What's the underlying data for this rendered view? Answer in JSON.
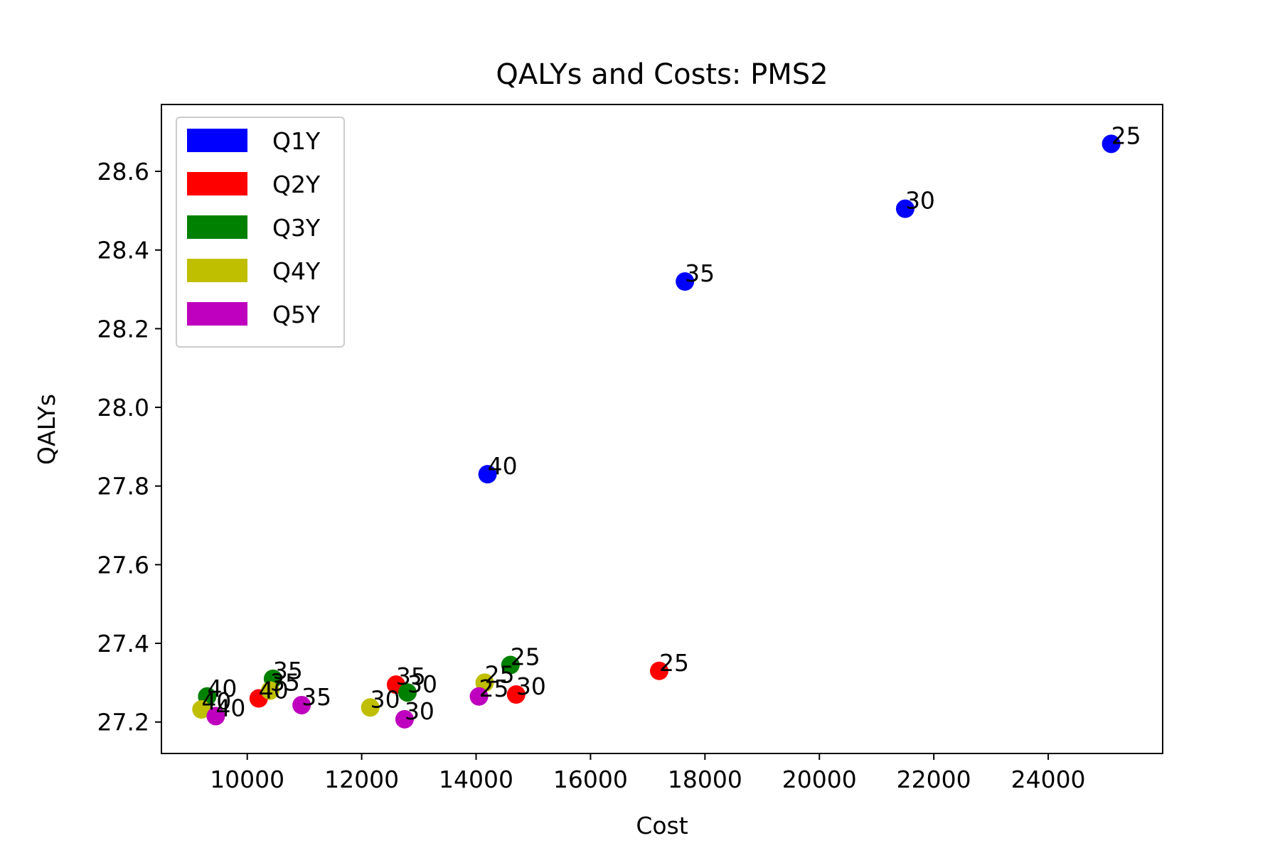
{
  "chart_data": {
    "type": "scatter",
    "title": "QALYs and Costs: PMS2",
    "xlabel": "Cost",
    "ylabel": "QALYs",
    "xlim": [
      8500,
      26000
    ],
    "ylim": [
      27.12,
      28.77
    ],
    "xticks": [
      10000,
      12000,
      14000,
      16000,
      18000,
      20000,
      22000,
      24000
    ],
    "yticks": [
      27.2,
      27.4,
      27.6,
      27.8,
      28.0,
      28.2,
      28.4,
      28.6
    ],
    "xtick_labels": [
      "10000",
      "12000",
      "14000",
      "16000",
      "18000",
      "20000",
      "22000",
      "24000"
    ],
    "ytick_labels": [
      "27.2",
      "27.4",
      "27.6",
      "27.8",
      "28.0",
      "28.2",
      "28.4",
      "28.6"
    ],
    "grid": false,
    "legend_position": "top-left",
    "series": [
      {
        "name": "Q1Y",
        "color": "#0000ff",
        "points": [
          {
            "x": 25100,
            "y": 28.67,
            "label": "25"
          },
          {
            "x": 21500,
            "y": 28.505,
            "label": "30"
          },
          {
            "x": 17650,
            "y": 28.32,
            "label": "35"
          },
          {
            "x": 14200,
            "y": 27.83,
            "label": "40"
          }
        ]
      },
      {
        "name": "Q2Y",
        "color": "#ff0000",
        "points": [
          {
            "x": 17200,
            "y": 27.33,
            "label": "25"
          },
          {
            "x": 14700,
            "y": 27.27,
            "label": "30"
          },
          {
            "x": 12600,
            "y": 27.295,
            "label": "35"
          },
          {
            "x": 10200,
            "y": 27.26,
            "label": "40"
          }
        ]
      },
      {
        "name": "Q3Y",
        "color": "#008000",
        "points": [
          {
            "x": 14600,
            "y": 27.345,
            "label": "25"
          },
          {
            "x": 12800,
            "y": 27.275,
            "label": "30"
          },
          {
            "x": 10450,
            "y": 27.31,
            "label": "35"
          },
          {
            "x": 9300,
            "y": 27.265,
            "label": "40"
          }
        ]
      },
      {
        "name": "Q4Y",
        "color": "#bfbf00",
        "points": [
          {
            "x": 14150,
            "y": 27.3,
            "label": "25"
          },
          {
            "x": 12150,
            "y": 27.237,
            "label": "30"
          },
          {
            "x": 10400,
            "y": 27.28,
            "label": "35"
          },
          {
            "x": 9200,
            "y": 27.232,
            "label": "40"
          }
        ]
      },
      {
        "name": "Q5Y",
        "color": "#bf00bf",
        "points": [
          {
            "x": 14050,
            "y": 27.265,
            "label": "25"
          },
          {
            "x": 12750,
            "y": 27.207,
            "label": "30"
          },
          {
            "x": 10950,
            "y": 27.243,
            "label": "35"
          },
          {
            "x": 9450,
            "y": 27.215,
            "label": "40"
          }
        ]
      }
    ]
  }
}
